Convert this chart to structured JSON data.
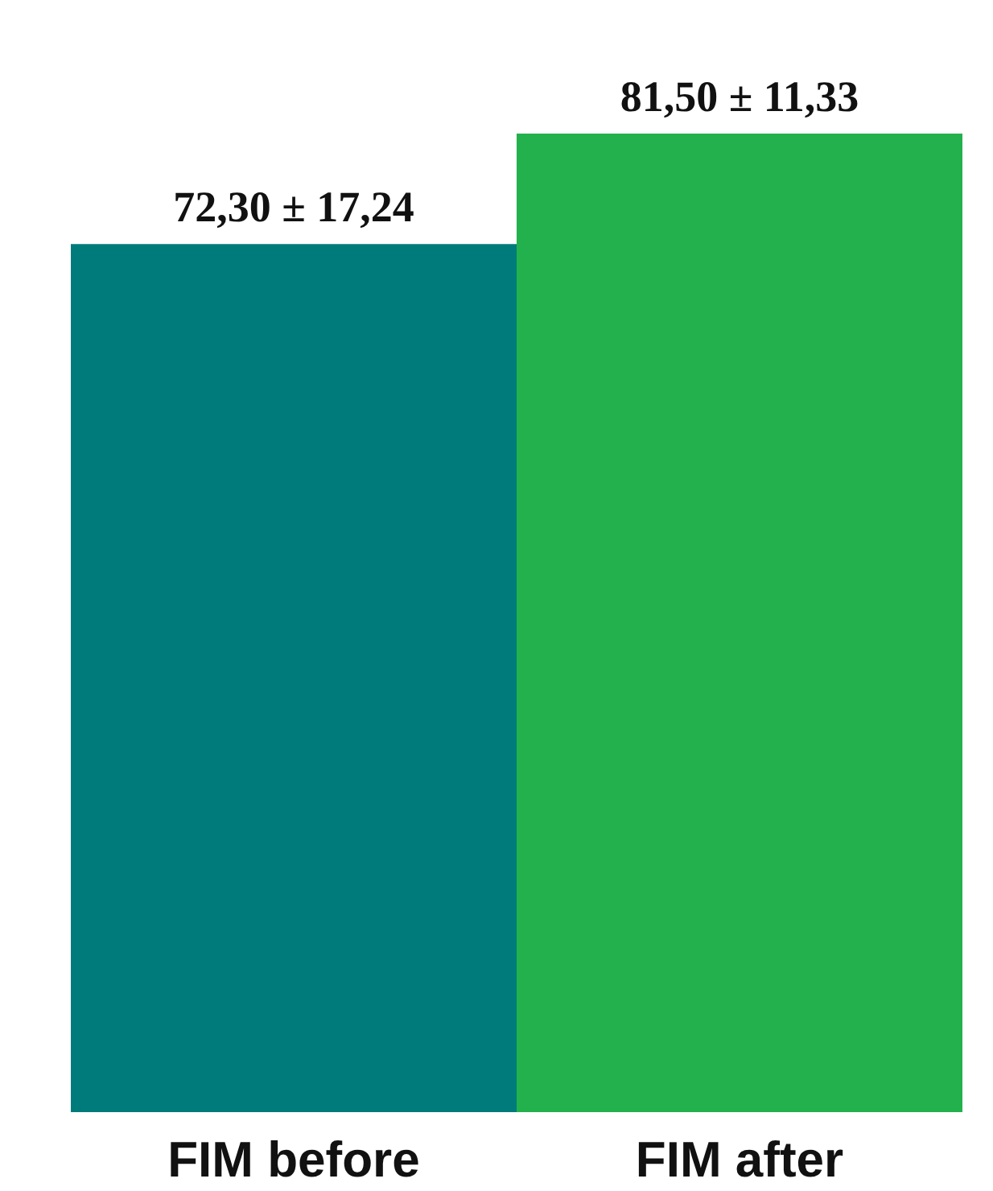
{
  "chart_data": {
    "type": "bar",
    "categories": [
      "FIM before",
      "FIM after"
    ],
    "values": [
      72.3,
      81.5
    ],
    "colors": [
      "#007b7b",
      "#22b14c"
    ],
    "value_labels": [
      "72,30 ± 17,24",
      "81,50 ± 11,33"
    ],
    "grid": false
  }
}
